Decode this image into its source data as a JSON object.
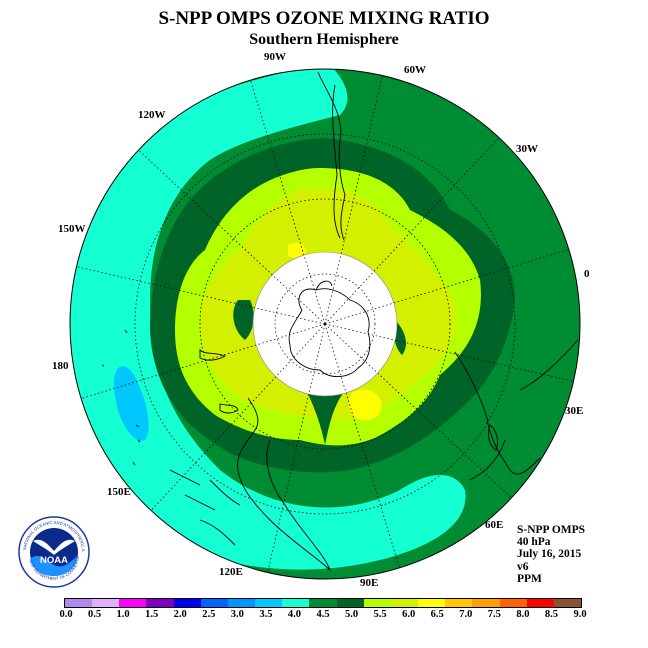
{
  "title": "S-NPP OMPS OZONE MIXING RATIO",
  "subtitle": "Southern Hemisphere",
  "longitude_labels": {
    "lon_90w": "90W",
    "lon_60w": "60W",
    "lon_30w": "30W",
    "lon_0": "0",
    "lon_30e": "30E",
    "lon_60e": "60E",
    "lon_90e": "90E",
    "lon_120e": "120E",
    "lon_150e": "150E",
    "lon_180": "180",
    "lon_150w": "150W",
    "lon_120w": "120W"
  },
  "info": {
    "instrument": "S-NPP OMPS",
    "level": "40 hPa",
    "date": "July 16, 2015",
    "version": "v6",
    "units": "PPM"
  },
  "logo": {
    "text": "NOAA",
    "ring_text": "NATIONAL OCEANIC AND ATMOSPHERIC ADMINISTRATION",
    "ring_text_bottom": "U.S. DEPARTMENT OF COMMERCE"
  },
  "colorbar": {
    "ticks": [
      "0.0",
      "0.5",
      "1.0",
      "1.5",
      "2.0",
      "2.5",
      "3.0",
      "3.5",
      "4.0",
      "4.5",
      "5.0",
      "5.5",
      "6.0",
      "6.5",
      "7.0",
      "7.5",
      "8.0",
      "8.5",
      "9.0"
    ],
    "colors": [
      "#b088f0",
      "#e0b0f8",
      "#ff00ff",
      "#8000c0",
      "#0000ee",
      "#0064ff",
      "#0096ff",
      "#00c8ff",
      "#14ffd2",
      "#008c32",
      "#006428",
      "#b4ff00",
      "#d2f000",
      "#ffff00",
      "#ffc800",
      "#ffa000",
      "#ff6400",
      "#ff0000",
      "#8c5032"
    ]
  },
  "map_colors": {
    "low_cyan": "#14ffd2",
    "light_blue": "#00c8ff",
    "green_45": "#008c32",
    "green_50": "#006428",
    "yellowgreen_55": "#b4ff00",
    "yellowgreen_60": "#d2f000",
    "yellow_65": "#ffff00"
  }
}
